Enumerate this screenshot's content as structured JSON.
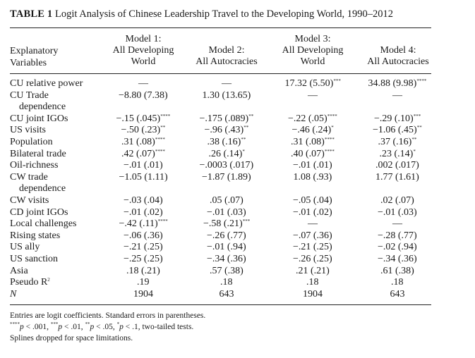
{
  "table": {
    "title_bold": "TABLE 1",
    "title_text": "Logit Analysis of Chinese Leadership Travel to the Developing World, 1990–2012",
    "stub_header": [
      "Explanatory",
      "Variables"
    ],
    "columns": [
      {
        "lines": [
          "Model 1:",
          "All Developing",
          "World"
        ]
      },
      {
        "lines": [
          "Model 2:",
          "All Autocracies"
        ]
      },
      {
        "lines": [
          "Model 3:",
          "All Developing",
          "World"
        ]
      },
      {
        "lines": [
          "Model 4:",
          "All Autocracies"
        ]
      }
    ],
    "rows": [
      {
        "label": "CU relative power",
        "cells": [
          "—",
          "—",
          "17.32 (5.50)",
          "34.88 (9.98)"
        ],
        "stars": [
          "",
          "",
          "***",
          "****"
        ]
      },
      {
        "label": "CU Trade",
        "label2": "dependence",
        "cells": [
          "−8.80 (7.38)",
          "1.30 (13.65)",
          "—",
          "—"
        ],
        "stars": [
          "",
          "",
          "",
          ""
        ]
      },
      {
        "label": "CU joint IGOs",
        "cells": [
          "−.15 (.045)",
          "−.175 (.089)",
          "−.22 (.05)",
          "−.29 (.10)"
        ],
        "stars": [
          "****",
          "**",
          "****",
          "***"
        ]
      },
      {
        "label": "US visits",
        "cells": [
          "−.50 (.23)",
          "−.96 (.43)",
          "−.46 (.24)",
          "−1.06 (.45)"
        ],
        "stars": [
          "**",
          "**",
          "*",
          "**"
        ]
      },
      {
        "label": "Population",
        "cells": [
          ".31 (.08)",
          ".38 (.16)",
          ".31 (.08)",
          ".37 (.16)"
        ],
        "stars": [
          "****",
          "**",
          "****",
          "**"
        ]
      },
      {
        "label": "Bilateral trade",
        "cells": [
          ".42 (.07)",
          ".26 (.14)",
          ".40 (.07)",
          ".23 (.14)"
        ],
        "stars": [
          "****",
          "*",
          "****",
          "*"
        ]
      },
      {
        "label": "Oil-richness",
        "cells": [
          "−.01 (.01)",
          "−.0003 (.017)",
          "−.01 (.01)",
          ".002 (.017)"
        ],
        "stars": [
          "",
          "",
          "",
          ""
        ]
      },
      {
        "label": "CW trade",
        "label2": "dependence",
        "cells": [
          "−1.05 (1.11)",
          "−1.87 (1.89)",
          "1.08 (.93)",
          "1.77 (1.61)"
        ],
        "stars": [
          "",
          "",
          "",
          ""
        ]
      },
      {
        "label": "CW visits",
        "cells": [
          "−.03 (.04)",
          ".05 (.07)",
          "−.05 (.04)",
          ".02 (.07)"
        ],
        "stars": [
          "",
          "",
          "",
          ""
        ]
      },
      {
        "label": "CD joint IGOs",
        "cells": [
          "−.01 (.02)",
          "−.01 (.03)",
          "−.01 (.02)",
          "−.01 (.03)"
        ],
        "stars": [
          "",
          "",
          "",
          ""
        ]
      },
      {
        "label": "Local challenges",
        "cells": [
          "−.42 (.11)",
          "−.58 (.21)",
          "—",
          "—"
        ],
        "stars": [
          "****",
          "***",
          "",
          ""
        ]
      },
      {
        "label": "Rising states",
        "cells": [
          "−.06 (.36)",
          "−.26 (.77)",
          "−.07 (.36)",
          "−.28 (.77)"
        ],
        "stars": [
          "",
          "",
          "",
          ""
        ]
      },
      {
        "label": "US ally",
        "cells": [
          "−.21 (.25)",
          "−.01 (.94)",
          "−.21 (.25)",
          "−.02 (.94)"
        ],
        "stars": [
          "",
          "",
          "",
          ""
        ]
      },
      {
        "label": "US sanction",
        "cells": [
          "−.25 (.25)",
          "−.34 (.36)",
          "−.26 (.25)",
          "−.34 (.36)"
        ],
        "stars": [
          "",
          "",
          "",
          ""
        ]
      },
      {
        "label": "Asia",
        "cells": [
          ".18 (.21)",
          ".57 (.38)",
          ".21 (.21)",
          ".61 (.38)"
        ],
        "stars": [
          "",
          "",
          "",
          ""
        ]
      },
      {
        "label": "Pseudo R",
        "label_sup": "2",
        "cells": [
          ".19",
          ".18",
          ".18",
          ".18"
        ],
        "stars": [
          "",
          "",
          "",
          ""
        ]
      },
      {
        "label": "N",
        "label_italic": true,
        "cells": [
          "1904",
          "643",
          "1904",
          "643"
        ],
        "stars": [
          "",
          "",
          "",
          ""
        ]
      }
    ],
    "footnotes": {
      "line1": "Entries are logit coefficients. Standard errors in parentheses.",
      "line2": [
        {
          "sup": "****",
          "text": "p",
          "rest": " < .001, "
        },
        {
          "sup": "***",
          "text": "p",
          "rest": " < .01, "
        },
        {
          "sup": "**",
          "text": "p",
          "rest": " < .05, "
        },
        {
          "sup": "*",
          "text": "p",
          "rest": " < .1, two-tailed tests."
        }
      ],
      "line3": "Splines dropped for space limitations."
    }
  }
}
